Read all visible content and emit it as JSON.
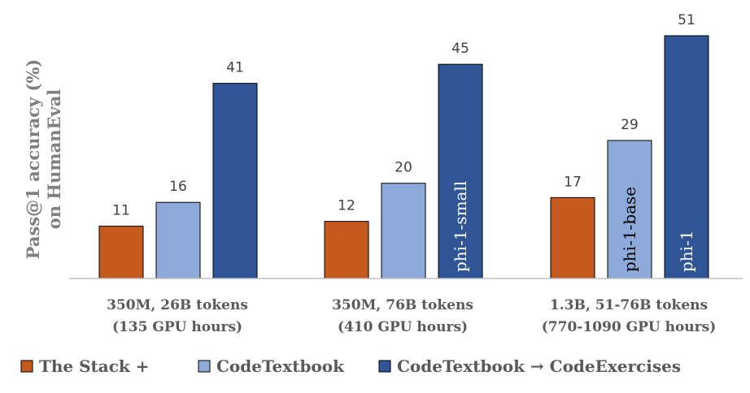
{
  "chart_data": {
    "type": "bar",
    "ylabel": [
      "Pass@1 accuracy (%)",
      "on HumanEval"
    ],
    "categories": [
      [
        "350M, 26B tokens",
        "(135 GPU hours)"
      ],
      [
        "350M, 76B tokens",
        "(410 GPU hours)"
      ],
      [
        "1.3B, 51-76B tokens",
        "(770-1090 GPU hours)"
      ]
    ],
    "series": [
      {
        "name": "The Stack +",
        "color": "#c55a1e",
        "values": [
          11,
          12,
          17
        ],
        "bar_labels": [
          "",
          "",
          ""
        ]
      },
      {
        "name": "CodeTextbook",
        "color": "#8eaadb",
        "values": [
          16,
          20,
          29
        ],
        "bar_labels": [
          "",
          "",
          "phi-1-base"
        ]
      },
      {
        "name": "CodeTextbook → CodeExercises",
        "color": "#2f5597",
        "values": [
          41,
          45,
          51
        ],
        "bar_labels": [
          "",
          "phi-1-small",
          "phi-1"
        ]
      }
    ],
    "ylim": [
      0,
      51
    ],
    "grid": false,
    "legend": "bottom"
  }
}
